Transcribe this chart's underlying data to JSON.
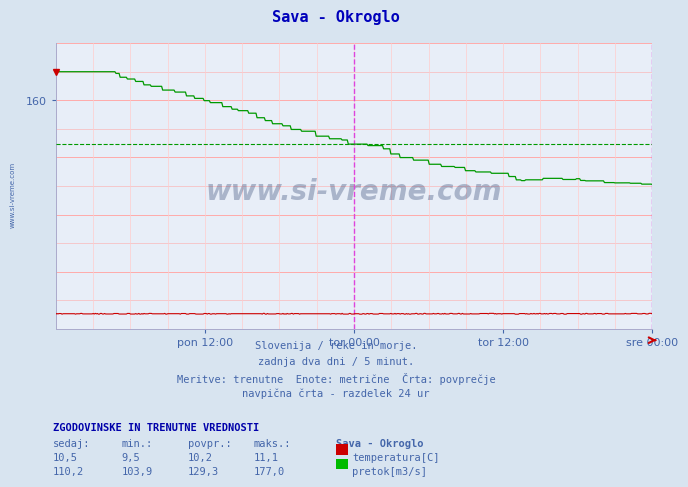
{
  "title": "Sava - Okroglo",
  "title_color": "#0000bb",
  "bg_color": "#d8e4f0",
  "plot_bg_color": "#e8eef8",
  "grid_h_color": "#ffaaaa",
  "grid_v_color": "#ffcccc",
  "text_color": "#4466aa",
  "xlabel_ticks": [
    "pon 12:00",
    "tor 00:00",
    "tor 12:00",
    "sre 00:00"
  ],
  "xlabel_tick_positions": [
    0.25,
    0.5,
    0.75,
    1.0
  ],
  "vline_positions": [
    0.5,
    1.0
  ],
  "vline_color": "#dd44dd",
  "avg_line_color": "#009900",
  "avg_line_value": 129.3,
  "ymin": 0,
  "ymax": 200,
  "ytick_values": [
    160
  ],
  "watermark": "www.si-vreme.com",
  "watermark_color": "#1a3060",
  "info_lines": [
    "Slovenija / reke in morje.",
    "zadnja dva dni / 5 minut.",
    "Meritve: trenutne  Enote: metrične  Črta: povprečje",
    "navpična črta - razdelek 24 ur"
  ],
  "table_header": "ZGODOVINSKE IN TRENUTNE VREDNOSTI",
  "table_cols": [
    "sedaj:",
    "min.:",
    "povpr.:",
    "maks.:",
    "Sava - Okroglo"
  ],
  "table_row1": [
    "10,5",
    "9,5",
    "10,2",
    "11,1",
    "temperatura[C]"
  ],
  "table_row1_color": "#cc0000",
  "table_row2": [
    "110,2",
    "103,9",
    "129,3",
    "177,0",
    "pretok[m3/s]"
  ],
  "table_row2_color": "#00bb00",
  "ylabel_text": "www.si-vreme.com",
  "temp_color": "#cc0000",
  "flow_color": "#009900",
  "arrow_color": "#cc0000",
  "n_hgrid": 10,
  "n_vgrid": 16
}
